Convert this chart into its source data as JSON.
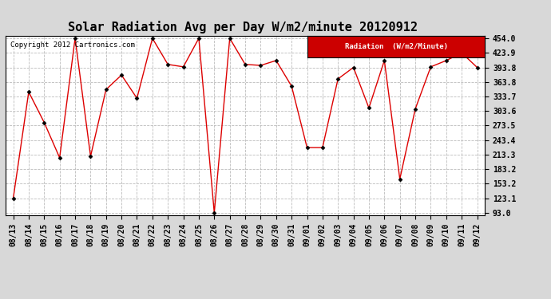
{
  "title": "Solar Radiation Avg per Day W/m2/minute 20120912",
  "copyright": "Copyright 2012 Cartronics.com",
  "legend_label": "Radiation  (W/m2/Minute)",
  "dates": [
    "08/13",
    "08/14",
    "08/15",
    "08/16",
    "08/17",
    "08/18",
    "08/19",
    "08/20",
    "08/21",
    "08/22",
    "08/23",
    "08/24",
    "08/25",
    "08/26",
    "08/27",
    "08/28",
    "08/29",
    "08/30",
    "08/31",
    "09/01",
    "09/02",
    "09/03",
    "09/04",
    "09/05",
    "09/06",
    "09/07",
    "09/08",
    "09/09",
    "09/10",
    "09/11",
    "09/12"
  ],
  "values": [
    123.1,
    343.0,
    280.0,
    207.0,
    454.0,
    210.0,
    348.0,
    378.0,
    330.0,
    454.0,
    400.0,
    395.0,
    454.0,
    93.0,
    454.0,
    400.0,
    398.0,
    408.0,
    355.0,
    228.0,
    228.0,
    370.0,
    393.8,
    310.0,
    408.0,
    163.0,
    308.0,
    395.0,
    408.0,
    423.9,
    393.8
  ],
  "ymin": 93.0,
  "ymax": 454.0,
  "yticks": [
    93.0,
    123.1,
    153.2,
    183.2,
    213.3,
    243.4,
    273.5,
    303.6,
    333.7,
    363.8,
    393.8,
    423.9,
    454.0
  ],
  "line_color": "#dd0000",
  "marker_color": "#000000",
  "bg_color": "#d8d8d8",
  "plot_bg_color": "#ffffff",
  "grid_color": "#bbbbbb",
  "legend_bg": "#cc0000",
  "legend_text_color": "#ffffff",
  "title_fontsize": 11,
  "tick_fontsize": 7,
  "copyright_fontsize": 6.5
}
